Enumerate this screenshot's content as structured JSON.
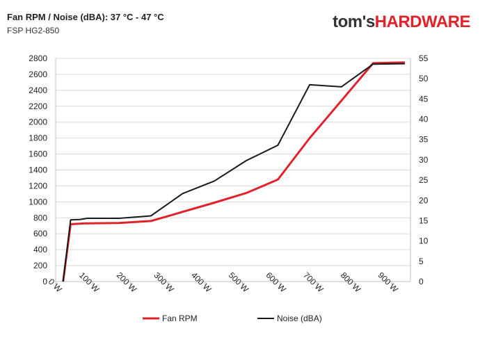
{
  "header": {
    "title": "Fan RPM / Noise (dBA): 37 °C - 47 °C",
    "subtitle": "FSP HG2-850",
    "brand_part1": "tom's",
    "brand_part2": "HARDWARE"
  },
  "colors": {
    "fan_rpm": "#e0232b",
    "noise": "#1a1a1a",
    "brand_accent": "#e0232b"
  },
  "chart_data": {
    "type": "line",
    "title": "Fan RPM / Noise (dBA): 37 °C - 47 °C",
    "subtitle": "FSP HG2-850",
    "xlabel": "",
    "ylabel": "",
    "x_ticks": [
      "0 W",
      "100 W",
      "200 W",
      "300 W",
      "400 W",
      "500 W",
      "600 W",
      "700 W",
      "800 W",
      "900 W"
    ],
    "xlim": [
      0,
      950
    ],
    "y_left": {
      "lim": [
        0,
        2800
      ],
      "step": 200
    },
    "y_right": {
      "lim": [
        0,
        55
      ],
      "step": 5
    },
    "grid": "horizontal",
    "legend_position": "bottom",
    "series": [
      {
        "name": "Fan RPM",
        "axis": "left",
        "x": [
          20,
          40,
          80,
          170,
          255,
          425,
          510,
          595,
          680,
          765,
          850,
          935
        ],
        "y": [
          0,
          720,
          730,
          735,
          760,
          990,
          1110,
          1280,
          1800,
          2270,
          2740,
          2750
        ]
      },
      {
        "name": "Noise (dBA)",
        "axis": "right",
        "x": [
          20,
          40,
          65,
          85,
          170,
          255,
          340,
          425,
          510,
          595,
          680,
          765,
          850,
          935
        ],
        "y": [
          0,
          15.2,
          15.3,
          15.6,
          15.6,
          16.2,
          21.7,
          24.8,
          29.8,
          33.6,
          48.5,
          48.0,
          53.6,
          53.7
        ]
      }
    ]
  }
}
